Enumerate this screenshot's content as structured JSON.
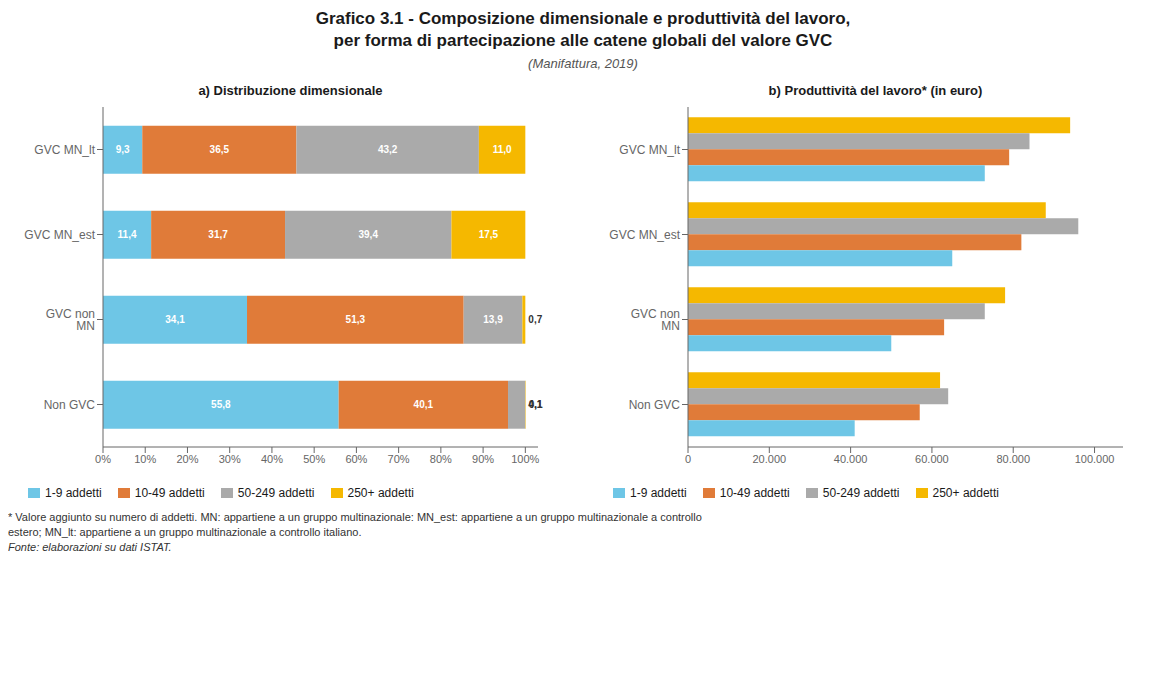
{
  "title": [
    "Grafico 3.1 - Composizione dimensionale e produttività del lavoro,",
    "per forma di partecipazione alle catene globali del valore GVC"
  ],
  "subtitle": "(Manifattura, 2019)",
  "annotations": [
    "* Valore aggiunto su numero di addetti. MN: appartiene a un gruppo multinazionale: MN_est: appartiene a un gruppo multinazionale a controllo",
    "estero; MN_lt: appartiene a un gruppo multinazionale a controllo italiano.",
    "Fonte: elaborazioni su dati ISTAT."
  ],
  "chart_data": [
    {
      "type": "bar",
      "title": "a) Distribuzione dimensionale",
      "orientation": "horizontal",
      "stacked": true,
      "data_labels": true,
      "grid": false,
      "legend": "bottom",
      "categories": [
        "GVC MN_lt",
        "GVC MN_est",
        "GVC non MN",
        "Non GVC"
      ],
      "series": [
        {
          "name": "1-9 addetti",
          "color": "#6EC6E6",
          "values": [
            9.3,
            11.4,
            34.1,
            55.8
          ],
          "value_labels": [
            "9,3",
            "11,4",
            "34,1",
            "55,8"
          ]
        },
        {
          "name": "10-49 addetti",
          "color": "#E07B39",
          "values": [
            36.5,
            31.7,
            51.3,
            40.1
          ],
          "value_labels": [
            "36,5",
            "31,7",
            "51,3",
            "40,1"
          ]
        },
        {
          "name": "50-249 addetti",
          "color": "#AAAAAA",
          "values": [
            43.2,
            39.4,
            13.9,
            4.1
          ],
          "value_labels": [
            "43,2",
            "39,4",
            "13,9",
            "4,1"
          ]
        },
        {
          "name": "250+ addetti",
          "color": "#F5B800",
          "values": [
            11.0,
            17.5,
            0.7,
            0.1
          ],
          "value_labels": [
            "11,0",
            "17,5",
            "0,7",
            "0,1"
          ]
        }
      ],
      "xlim": [
        0,
        103
      ],
      "xticks": [
        {
          "value": 0,
          "label": "0%"
        },
        {
          "value": 10,
          "label": "10%"
        },
        {
          "value": 20,
          "label": "20%"
        },
        {
          "value": 30,
          "label": "30%"
        },
        {
          "value": 40,
          "label": "40%"
        },
        {
          "value": 50,
          "label": "50%"
        },
        {
          "value": 60,
          "label": "60%"
        },
        {
          "value": 70,
          "label": "70%"
        },
        {
          "value": 80,
          "label": "80%"
        },
        {
          "value": 90,
          "label": "90%"
        },
        {
          "value": 100,
          "label": "100%"
        }
      ]
    },
    {
      "type": "bar",
      "title": "b) Produttività del lavoro* (in euro)",
      "orientation": "horizontal",
      "stacked": false,
      "grid": false,
      "legend": "bottom",
      "categories": [
        "GVC MN_lt",
        "GVC MN_est",
        "GVC non MN",
        "Non GVC"
      ],
      "series": [
        {
          "name": "1-9 addetti",
          "color": "#6EC6E6",
          "values": [
            73000,
            65000,
            50000,
            41000
          ]
        },
        {
          "name": "10-49 addetti",
          "color": "#E07B39",
          "values": [
            79000,
            82000,
            63000,
            57000
          ]
        },
        {
          "name": "50-249 addetti",
          "color": "#AAAAAA",
          "values": [
            84000,
            96000,
            73000,
            64000
          ]
        },
        {
          "name": "250+ addetti",
          "color": "#F5B800",
          "values": [
            94000,
            88000,
            78000,
            62000
          ]
        }
      ],
      "xlim": [
        0,
        107000
      ],
      "xticks": [
        0,
        {
          "value": 20000,
          "label": "20.000"
        },
        {
          "value": 40000,
          "label": "40.000"
        },
        {
          "value": 60000,
          "label": "60.000"
        },
        {
          "value": 80000,
          "label": "80.000"
        },
        {
          "value": 100000,
          "label": "100.000"
        }
      ]
    }
  ]
}
